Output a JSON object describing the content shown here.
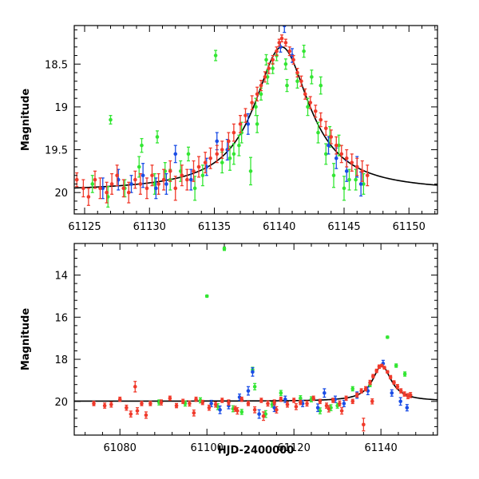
{
  "chart_data": [
    {
      "type": "scatter",
      "panel": "top",
      "title": "",
      "xlabel": "",
      "ylabel": "Magnitude",
      "xlim": [
        61124.2,
        61152.2
      ],
      "ylim": [
        20.25,
        18.05
      ],
      "y_inverted": true,
      "xticks": [
        61125,
        61130,
        61135,
        61140,
        61145,
        61150
      ],
      "xtick_labels": [
        "61125",
        "61130",
        "61135",
        "61140",
        "61145",
        "61150"
      ],
      "yticks": [
        18.5,
        19,
        19.5,
        20
      ],
      "ytick_labels": [
        "18.5",
        "19",
        "19.5",
        "20"
      ],
      "model_curve": {
        "name": "model",
        "color": "#000000",
        "peak_time": 61140.2,
        "baseline_mag": 19.99,
        "peak_mag": 18.3,
        "width_days": 2.6
      },
      "series": [
        {
          "name": "green",
          "color": "#33e633",
          "x": [
            61127.0,
            61129.4,
            61130.6,
            61131.2,
            61133.0,
            61135.1,
            61136.2,
            61136.9,
            61137.8,
            61138.3,
            61138.6,
            61139.0,
            61139.5,
            61140.6,
            61141.9,
            61142.5,
            61143.2,
            61143.9,
            61144.6,
            61145.4,
            61125.6,
            61126.8,
            61128.1,
            61129.2,
            61130.4,
            61131.6,
            61132.4,
            61133.5,
            61134.1,
            61135.6,
            61136.5,
            61137.1,
            61138.2,
            61139.1,
            61139.8,
            61140.5,
            61141.4,
            61142.2,
            61143.0,
            61143.6,
            61144.2,
            61145.0,
            61145.9,
            61146.5
          ],
          "y": [
            19.15,
            19.45,
            19.35,
            19.75,
            19.55,
            18.4,
            19.6,
            19.45,
            19.75,
            19.2,
            18.85,
            18.45,
            18.55,
            18.75,
            18.35,
            18.65,
            18.75,
            19.35,
            19.45,
            19.85,
            19.9,
            20.05,
            19.95,
            19.7,
            19.9,
            19.85,
            19.75,
            19.95,
            19.8,
            19.65,
            19.55,
            19.3,
            19.0,
            18.65,
            18.4,
            18.5,
            18.7,
            19.0,
            19.3,
            19.55,
            19.8,
            19.95,
            19.85,
            19.9
          ],
          "err": [
            0.05,
            0.08,
            0.07,
            0.1,
            0.08,
            0.06,
            0.14,
            0.12,
            0.16,
            0.1,
            0.07,
            0.06,
            0.06,
            0.07,
            0.07,
            0.08,
            0.1,
            0.12,
            0.12,
            0.12,
            0.1,
            0.12,
            0.1,
            0.12,
            0.12,
            0.12,
            0.12,
            0.14,
            0.12,
            0.12,
            0.12,
            0.12,
            0.1,
            0.08,
            0.06,
            0.06,
            0.08,
            0.1,
            0.12,
            0.12,
            0.14,
            0.14,
            0.12,
            0.12
          ]
        },
        {
          "name": "blue",
          "color": "#1a4de6",
          "x": [
            61126.4,
            61127.6,
            61128.6,
            61129.5,
            61130.5,
            61131.3,
            61132.0,
            61133.2,
            61134.4,
            61135.2,
            61136.0,
            61137.6,
            61140.1,
            61140.4,
            61141.0,
            61143.8,
            61144.4,
            61145.2,
            61146.0,
            61146.3
          ],
          "y": [
            19.95,
            19.85,
            19.9,
            19.8,
            19.95,
            19.9,
            19.55,
            19.85,
            19.7,
            19.4,
            19.5,
            19.2,
            18.3,
            18.05,
            18.4,
            19.45,
            19.6,
            19.75,
            19.7,
            19.9
          ],
          "err": [
            0.12,
            0.12,
            0.1,
            0.14,
            0.12,
            0.12,
            0.1,
            0.12,
            0.1,
            0.1,
            0.12,
            0.12,
            0.06,
            0.08,
            0.08,
            0.1,
            0.12,
            0.12,
            0.12,
            0.14
          ]
        },
        {
          "name": "red",
          "color": "#f03a2b",
          "x": [
            61124.4,
            61124.9,
            61125.3,
            61125.8,
            61126.2,
            61126.7,
            61127.1,
            61127.5,
            61128.0,
            61128.4,
            61128.9,
            61129.3,
            61129.8,
            61130.2,
            61130.7,
            61131.1,
            61131.6,
            61132.0,
            61132.5,
            61132.9,
            61133.4,
            61133.8,
            61134.3,
            61134.7,
            61135.2,
            61135.6,
            61136.1,
            61136.5,
            61137.0,
            61137.4,
            61137.9,
            61138.3,
            61138.6,
            61138.9,
            61139.2,
            61139.5,
            61139.8,
            61140.0,
            61140.2,
            61140.5,
            61140.8,
            61141.1,
            61141.4,
            61141.7,
            61142.0,
            61142.4,
            61142.8,
            61143.2,
            61143.6,
            61144.0,
            61144.4,
            61144.8,
            61145.2,
            61145.6,
            61146.0,
            61146.4,
            61146.8
          ],
          "y": [
            19.85,
            19.95,
            20.05,
            19.85,
            19.95,
            20.0,
            19.9,
            19.8,
            19.95,
            20.0,
            19.85,
            19.9,
            19.95,
            19.8,
            19.9,
            19.85,
            19.75,
            19.95,
            19.8,
            19.85,
            19.75,
            19.7,
            19.65,
            19.6,
            19.55,
            19.5,
            19.4,
            19.3,
            19.2,
            19.1,
            18.95,
            18.85,
            18.75,
            18.65,
            18.55,
            18.45,
            18.35,
            18.25,
            18.2,
            18.25,
            18.35,
            18.45,
            18.6,
            18.7,
            18.85,
            18.95,
            19.05,
            19.15,
            19.25,
            19.35,
            19.45,
            19.55,
            19.6,
            19.65,
            19.7,
            19.75,
            19.8
          ],
          "err": [
            0.08,
            0.1,
            0.1,
            0.1,
            0.12,
            0.12,
            0.12,
            0.12,
            0.1,
            0.12,
            0.1,
            0.12,
            0.12,
            0.12,
            0.12,
            0.12,
            0.12,
            0.14,
            0.12,
            0.12,
            0.12,
            0.12,
            0.12,
            0.12,
            0.1,
            0.1,
            0.1,
            0.1,
            0.1,
            0.08,
            0.08,
            0.08,
            0.06,
            0.06,
            0.06,
            0.05,
            0.05,
            0.04,
            0.04,
            0.04,
            0.05,
            0.05,
            0.05,
            0.06,
            0.06,
            0.07,
            0.07,
            0.08,
            0.08,
            0.08,
            0.1,
            0.1,
            0.1,
            0.1,
            0.1,
            0.12,
            0.12
          ]
        }
      ]
    },
    {
      "type": "scatter",
      "panel": "bottom",
      "title": "",
      "xlabel": "HJD-2400000",
      "ylabel": "Magnitude",
      "xlim": [
        61069.5,
        61153.0
      ],
      "ylim": [
        21.6,
        12.5
      ],
      "y_inverted": true,
      "xticks": [
        61080,
        61100,
        61120,
        61140
      ],
      "xtick_labels": [
        "61080",
        "61100",
        "61120",
        "61140"
      ],
      "yticks": [
        14,
        16,
        18,
        20
      ],
      "ytick_labels": [
        "14",
        "16",
        "18",
        "20"
      ],
      "model_curve": {
        "name": "model",
        "color": "#000000",
        "peak_time": 61140.2,
        "baseline_mag": 19.99,
        "peak_mag": 18.3,
        "width_days": 2.6
      },
      "series": [
        {
          "name": "green",
          "color": "#33e633",
          "x": [
            61100.0,
            61104.0,
            61110.5,
            61111.0,
            61141.5,
            61095.0,
            61102.5,
            61108.0,
            61113.5,
            61117.0,
            61121.5,
            61126.0,
            61130.0,
            61133.5,
            61137.5,
            61143.5,
            61145.5,
            61089.0,
            61098.5,
            61106.0,
            61115.0,
            61124.0,
            61128.5
          ],
          "y": [
            15.0,
            12.75,
            18.5,
            19.3,
            16.95,
            20.1,
            20.25,
            20.5,
            20.6,
            19.6,
            19.85,
            20.45,
            20.2,
            19.4,
            19.2,
            18.3,
            18.7,
            20.05,
            19.95,
            20.35,
            20.15,
            19.9,
            20.3
          ],
          "err": [
            0.05,
            0.08,
            0.12,
            0.15,
            0.05,
            0.12,
            0.14,
            0.12,
            0.16,
            0.12,
            0.12,
            0.14,
            0.12,
            0.1,
            0.1,
            0.08,
            0.1,
            0.12,
            0.12,
            0.14,
            0.12,
            0.12,
            0.14
          ]
        },
        {
          "name": "blue",
          "color": "#1a4de6",
          "x": [
            61101.0,
            61103.0,
            61105.0,
            61107.5,
            61109.5,
            61110.5,
            61112.0,
            61115.5,
            61118.0,
            61122.0,
            61125.5,
            61127.0,
            61129.5,
            61131.5,
            61134.5,
            61137.0,
            61140.5,
            61142.5,
            61144.5,
            61146.0
          ],
          "y": [
            20.1,
            20.4,
            20.2,
            19.8,
            19.5,
            18.6,
            20.6,
            20.3,
            19.9,
            20.1,
            20.3,
            19.6,
            19.9,
            20.1,
            19.7,
            19.5,
            18.2,
            19.6,
            20.0,
            20.3
          ],
          "err": [
            0.15,
            0.18,
            0.15,
            0.15,
            0.2,
            0.2,
            0.2,
            0.18,
            0.15,
            0.15,
            0.18,
            0.2,
            0.15,
            0.15,
            0.15,
            0.18,
            0.15,
            0.15,
            0.18,
            0.15
          ]
        },
        {
          "name": "red",
          "color": "#f03a2b",
          "x": [
            61074.0,
            61076.5,
            61078.0,
            61080.0,
            61081.5,
            61082.5,
            61083.5,
            61085.0,
            61087.0,
            61089.5,
            61091.5,
            61093.0,
            61094.5,
            61096.0,
            61097.5,
            61099.0,
            61100.5,
            61102.0,
            61103.5,
            61105.0,
            61106.5,
            61108.0,
            61109.5,
            61111.0,
            61112.5,
            61114.0,
            61115.5,
            61117.0,
            61118.5,
            61120.0,
            61121.5,
            61123.0,
            61124.5,
            61126.0,
            61127.5,
            61129.0,
            61130.5,
            61132.0,
            61133.5,
            61134.5,
            61135.5,
            61136.5,
            61137.5,
            61138.2,
            61139.0,
            61139.6,
            61140.2,
            61140.8,
            61141.5,
            61142.2,
            61143.0,
            61143.8,
            61144.6,
            61145.4,
            61146.2,
            61146.8,
            61084.0,
            61086.0,
            61097.0,
            61107.0,
            61113.0,
            61116.0,
            61120.5,
            61128.0,
            61131.0,
            61136.0,
            61138.0
          ],
          "y": [
            20.1,
            20.2,
            20.15,
            19.9,
            20.3,
            20.6,
            19.3,
            20.1,
            20.1,
            20.05,
            19.85,
            20.2,
            20.0,
            20.1,
            19.9,
            20.05,
            20.3,
            20.15,
            19.95,
            20.05,
            20.35,
            19.9,
            20.1,
            20.4,
            19.95,
            20.1,
            20.05,
            19.9,
            20.15,
            19.95,
            20.05,
            20.1,
            19.85,
            20.0,
            20.2,
            19.95,
            20.1,
            19.85,
            20.0,
            19.7,
            19.5,
            19.4,
            19.1,
            18.8,
            18.55,
            18.35,
            18.3,
            18.4,
            18.6,
            18.85,
            19.1,
            19.3,
            19.5,
            19.65,
            19.75,
            19.7,
            20.45,
            20.65,
            20.55,
            20.45,
            20.7,
            20.4,
            20.25,
            20.35,
            20.45,
            21.1,
            20.0
          ],
          "err": [
            0.1,
            0.12,
            0.12,
            0.1,
            0.12,
            0.14,
            0.25,
            0.1,
            0.1,
            0.12,
            0.1,
            0.1,
            0.1,
            0.12,
            0.1,
            0.1,
            0.12,
            0.12,
            0.1,
            0.12,
            0.12,
            0.1,
            0.1,
            0.14,
            0.1,
            0.12,
            0.12,
            0.1,
            0.12,
            0.1,
            0.1,
            0.12,
            0.1,
            0.1,
            0.12,
            0.1,
            0.12,
            0.1,
            0.1,
            0.1,
            0.1,
            0.1,
            0.1,
            0.08,
            0.08,
            0.08,
            0.06,
            0.06,
            0.06,
            0.08,
            0.08,
            0.1,
            0.1,
            0.1,
            0.12,
            0.12,
            0.15,
            0.15,
            0.14,
            0.15,
            0.2,
            0.15,
            0.14,
            0.15,
            0.15,
            0.3,
            0.12
          ]
        }
      ]
    }
  ]
}
